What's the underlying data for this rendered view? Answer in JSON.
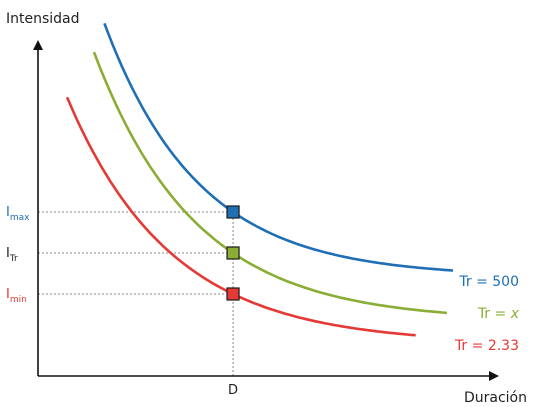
{
  "chart_data": {
    "type": "line",
    "xlabel": "Duración",
    "ylabel": "Intensidad",
    "x_ticks": [
      "D"
    ],
    "y_ticks": [
      {
        "base": "I",
        "sub": "max",
        "color": "#1f6fb5"
      },
      {
        "base": "I",
        "sub": "Tr",
        "color": "#222222"
      },
      {
        "base": "I",
        "sub": "min",
        "color": "#e53935"
      }
    ],
    "reference_x": 0.47,
    "reference_levels": [
      0.4,
      0.3,
      0.2
    ],
    "grid": false,
    "series": [
      {
        "name": "Tr = 500",
        "name_parts": [
          "Tr = ",
          "500"
        ],
        "color": "#1f6fb5",
        "level": 0.4
      },
      {
        "name": "Tr = x",
        "name_parts": [
          "Tr = ",
          "x"
        ],
        "color": "#8aad36",
        "level": 0.3
      },
      {
        "name": "Tr = 2.33",
        "name_parts": [
          "Tr = ",
          "2.33"
        ],
        "color": "#e53935",
        "level": 0.2
      }
    ]
  }
}
